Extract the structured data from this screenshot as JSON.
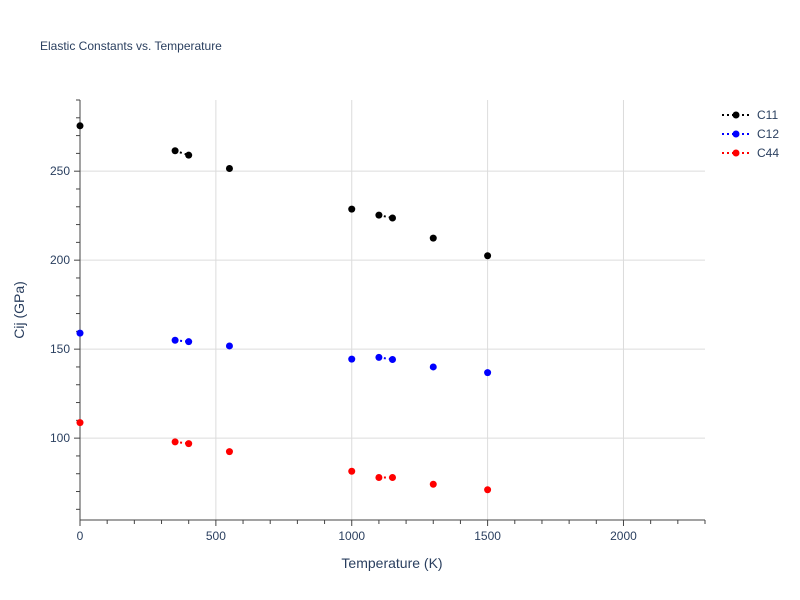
{
  "chart_data": {
    "type": "scatter",
    "title": "Elastic Constants vs. Temperature",
    "xlabel": "Temperature (K)",
    "ylabel": "Cij (GPa)",
    "xlim": [
      0,
      2300
    ],
    "ylim": [
      54,
      290
    ],
    "x_ticks": [
      0,
      500,
      1000,
      1500,
      2000
    ],
    "y_ticks": [
      100,
      150,
      200,
      250
    ],
    "grid": true,
    "legend_position": "top-right",
    "series": [
      {
        "name": "C11",
        "color": "#000000",
        "line_style": "dotted",
        "points": [
          [
            0,
            275.5
          ],
          [
            350,
            261.5
          ],
          [
            400,
            259
          ],
          [
            550,
            251.5
          ],
          [
            1000,
            228.7
          ],
          [
            1100,
            225.3
          ],
          [
            1150,
            223.7
          ],
          [
            1300,
            212.4
          ],
          [
            1500,
            202.5
          ]
        ],
        "connected_pairs": [
          [
            1,
            2
          ],
          [
            5,
            6
          ]
        ]
      },
      {
        "name": "C12",
        "color": "#0000ff",
        "line_style": "dotted",
        "points": [
          [
            0,
            159
          ],
          [
            350,
            155
          ],
          [
            400,
            154.2
          ],
          [
            550,
            151.8
          ],
          [
            1000,
            144.4
          ],
          [
            1100,
            145.4
          ],
          [
            1150,
            144.2
          ],
          [
            1300,
            140
          ],
          [
            1500,
            136.8
          ]
        ],
        "connected_pairs": [
          [
            1,
            2
          ],
          [
            5,
            6
          ]
        ]
      },
      {
        "name": "C44",
        "color": "#ff0000",
        "line_style": "dotted",
        "points": [
          [
            0,
            108.7
          ],
          [
            350,
            97.9
          ],
          [
            400,
            96.9
          ],
          [
            550,
            92.4
          ],
          [
            1000,
            81.4
          ],
          [
            1100,
            77.9
          ],
          [
            1150,
            77.9
          ],
          [
            1300,
            74.1
          ],
          [
            1500,
            71
          ]
        ],
        "connected_pairs": [
          [
            1,
            2
          ],
          [
            5,
            6
          ]
        ]
      }
    ]
  }
}
